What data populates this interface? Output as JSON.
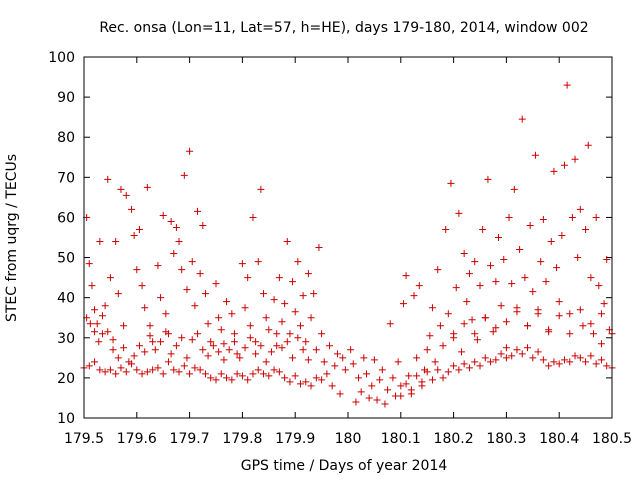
{
  "chart_data": {
    "type": "scatter",
    "title": "Rec. onsa (Lon=11, Lat=57, h=HE), days 179-180, 2014, window 002",
    "xlabel": "GPS time / Days of year 2014",
    "ylabel": "STEC from uqrg / TECUs",
    "xlim": [
      179.5,
      180.5
    ],
    "ylim": [
      10,
      100
    ],
    "xticks": [
      "179.5",
      "179.6",
      "179.7",
      "179.8",
      "179.9",
      "180",
      "180.1",
      "180.2",
      "180.3",
      "180.4",
      "180.5"
    ],
    "yticks": [
      "10",
      "20",
      "30",
      "40",
      "50",
      "60",
      "70",
      "80",
      "90",
      "100"
    ],
    "grid": false,
    "legend": "none",
    "marker": "plus",
    "color": "#cc0000",
    "points": [
      [
        179.505,
        60.0
      ],
      [
        179.51,
        48.5
      ],
      [
        179.515,
        43.0
      ],
      [
        179.52,
        37.0
      ],
      [
        179.525,
        33.5
      ],
      [
        179.53,
        54.0
      ],
      [
        179.535,
        31.0
      ],
      [
        179.54,
        38.0
      ],
      [
        179.545,
        69.5
      ],
      [
        179.55,
        45.0
      ],
      [
        179.555,
        27.0
      ],
      [
        179.56,
        54.0
      ],
      [
        179.565,
        41.0
      ],
      [
        179.57,
        67.0
      ],
      [
        179.575,
        33.0
      ],
      [
        179.58,
        65.5
      ],
      [
        179.59,
        62.0
      ],
      [
        179.595,
        55.5
      ],
      [
        179.6,
        47.0
      ],
      [
        179.605,
        57.0
      ],
      [
        179.61,
        43.0
      ],
      [
        179.615,
        37.5
      ],
      [
        179.62,
        67.5
      ],
      [
        179.625,
        33.0
      ],
      [
        179.63,
        29.0
      ],
      [
        179.64,
        48.0
      ],
      [
        179.645,
        40.0
      ],
      [
        179.65,
        60.5
      ],
      [
        179.655,
        36.0
      ],
      [
        179.66,
        31.0
      ],
      [
        179.665,
        59.0
      ],
      [
        179.67,
        51.0
      ],
      [
        179.675,
        57.5
      ],
      [
        179.68,
        54.0
      ],
      [
        179.685,
        47.0
      ],
      [
        179.69,
        70.5
      ],
      [
        179.695,
        42.0
      ],
      [
        179.7,
        76.5
      ],
      [
        179.705,
        49.0
      ],
      [
        179.71,
        38.0
      ],
      [
        179.715,
        61.5
      ],
      [
        179.72,
        46.0
      ],
      [
        179.725,
        58.0
      ],
      [
        179.73,
        41.0
      ],
      [
        179.735,
        33.5
      ],
      [
        179.74,
        29.0
      ],
      [
        179.75,
        43.5
      ],
      [
        179.755,
        35.0
      ],
      [
        179.76,
        32.0
      ],
      [
        179.765,
        28.5
      ],
      [
        179.77,
        39.0
      ],
      [
        179.78,
        36.0
      ],
      [
        179.785,
        31.0
      ],
      [
        179.79,
        26.0
      ],
      [
        179.8,
        48.5
      ],
      [
        179.805,
        37.5
      ],
      [
        179.81,
        45.0
      ],
      [
        179.815,
        33.0
      ],
      [
        179.82,
        60.0
      ],
      [
        179.825,
        29.0
      ],
      [
        179.83,
        49.0
      ],
      [
        179.835,
        67.0
      ],
      [
        179.84,
        41.0
      ],
      [
        179.845,
        35.0
      ],
      [
        179.85,
        32.0
      ],
      [
        179.86,
        39.5
      ],
      [
        179.865,
        28.0
      ],
      [
        179.87,
        45.0
      ],
      [
        179.875,
        34.0
      ],
      [
        179.88,
        38.5
      ],
      [
        179.885,
        54.0
      ],
      [
        179.89,
        31.0
      ],
      [
        179.895,
        44.0
      ],
      [
        179.9,
        36.5
      ],
      [
        179.905,
        49.0
      ],
      [
        179.91,
        33.0
      ],
      [
        179.915,
        40.5
      ],
      [
        179.92,
        29.0
      ],
      [
        179.925,
        46.0
      ],
      [
        179.93,
        35.0
      ],
      [
        179.935,
        41.0
      ],
      [
        179.94,
        27.0
      ],
      [
        179.945,
        52.5
      ],
      [
        179.95,
        31.0
      ],
      [
        179.955,
        24.0
      ],
      [
        179.96,
        21.0
      ],
      [
        179.965,
        28.0
      ],
      [
        179.97,
        18.0
      ],
      [
        179.975,
        23.0
      ],
      [
        179.98,
        26.0
      ],
      [
        179.985,
        16.0
      ],
      [
        179.99,
        25.0
      ],
      [
        179.995,
        22.0
      ],
      [
        179.505,
        35.0
      ],
      [
        179.512,
        33.5
      ],
      [
        179.52,
        31.5
      ],
      [
        179.528,
        29.0
      ],
      [
        179.535,
        35.5
      ],
      [
        179.545,
        31.5
      ],
      [
        179.555,
        29.5
      ],
      [
        179.565,
        25.0
      ],
      [
        179.575,
        27.5
      ],
      [
        179.585,
        24.0
      ],
      [
        179.595,
        25.5
      ],
      [
        179.605,
        28.0
      ],
      [
        179.615,
        26.5
      ],
      [
        179.625,
        30.5
      ],
      [
        179.635,
        27.0
      ],
      [
        179.645,
        29.0
      ],
      [
        179.655,
        31.5
      ],
      [
        179.665,
        26.0
      ],
      [
        179.675,
        28.0
      ],
      [
        179.685,
        30.0
      ],
      [
        179.695,
        25.0
      ],
      [
        179.705,
        29.5
      ],
      [
        179.715,
        31.0
      ],
      [
        179.725,
        27.0
      ],
      [
        179.735,
        25.5
      ],
      [
        179.745,
        28.0
      ],
      [
        179.755,
        26.5
      ],
      [
        179.765,
        24.5
      ],
      [
        179.775,
        27.0
      ],
      [
        179.785,
        29.0
      ],
      [
        179.795,
        25.0
      ],
      [
        179.805,
        27.5
      ],
      [
        179.815,
        30.0
      ],
      [
        179.825,
        26.0
      ],
      [
        179.835,
        28.0
      ],
      [
        179.845,
        24.0
      ],
      [
        179.855,
        26.5
      ],
      [
        179.865,
        31.0
      ],
      [
        179.875,
        27.5
      ],
      [
        179.885,
        29.0
      ],
      [
        179.895,
        25.0
      ],
      [
        179.905,
        30.0
      ],
      [
        179.915,
        27.0
      ],
      [
        179.925,
        24.5
      ],
      [
        179.5,
        22.5
      ],
      [
        179.51,
        23.0
      ],
      [
        179.52,
        24.0
      ],
      [
        179.53,
        22.0
      ],
      [
        179.54,
        21.5
      ],
      [
        179.55,
        22.0
      ],
      [
        179.56,
        21.0
      ],
      [
        179.57,
        22.5
      ],
      [
        179.58,
        21.5
      ],
      [
        179.59,
        23.5
      ],
      [
        179.6,
        22.0
      ],
      [
        179.61,
        21.0
      ],
      [
        179.62,
        21.5
      ],
      [
        179.63,
        22.0
      ],
      [
        179.64,
        22.5
      ],
      [
        179.65,
        21.0
      ],
      [
        179.66,
        24.0
      ],
      [
        179.67,
        22.0
      ],
      [
        179.68,
        21.5
      ],
      [
        179.69,
        23.0
      ],
      [
        179.7,
        21.0
      ],
      [
        179.71,
        22.5
      ],
      [
        179.72,
        22.0
      ],
      [
        179.73,
        21.0
      ],
      [
        179.74,
        20.0
      ],
      [
        179.75,
        19.5
      ],
      [
        179.76,
        21.0
      ],
      [
        179.77,
        20.0
      ],
      [
        179.78,
        19.5
      ],
      [
        179.79,
        21.0
      ],
      [
        179.8,
        20.5
      ],
      [
        179.81,
        19.5
      ],
      [
        179.82,
        21.0
      ],
      [
        179.83,
        22.0
      ],
      [
        179.84,
        21.0
      ],
      [
        179.85,
        20.5
      ],
      [
        179.86,
        22.0
      ],
      [
        179.87,
        21.5
      ],
      [
        179.88,
        20.0
      ],
      [
        179.89,
        19.0
      ],
      [
        179.9,
        20.5
      ],
      [
        179.91,
        18.5
      ],
      [
        179.92,
        19.0
      ],
      [
        179.93,
        18.0
      ],
      [
        179.94,
        20.0
      ],
      [
        179.95,
        19.5
      ],
      [
        180.005,
        27.0
      ],
      [
        180.01,
        23.5
      ],
      [
        180.015,
        14.0
      ],
      [
        180.02,
        20.0
      ],
      [
        180.025,
        16.5
      ],
      [
        180.03,
        25.0
      ],
      [
        180.035,
        21.0
      ],
      [
        180.04,
        15.0
      ],
      [
        180.045,
        18.0
      ],
      [
        180.05,
        24.5
      ],
      [
        180.055,
        14.5
      ],
      [
        180.06,
        19.5
      ],
      [
        180.065,
        22.0
      ],
      [
        180.07,
        13.5
      ],
      [
        180.075,
        17.0
      ],
      [
        180.08,
        33.5
      ],
      [
        180.085,
        20.0
      ],
      [
        180.09,
        15.5
      ],
      [
        180.095,
        24.0
      ],
      [
        180.1,
        18.0
      ],
      [
        180.105,
        38.5
      ],
      [
        180.11,
        45.5
      ],
      [
        180.115,
        20.5
      ],
      [
        180.12,
        16.0
      ],
      [
        180.125,
        40.5
      ],
      [
        180.13,
        25.0
      ],
      [
        180.135,
        43.0
      ],
      [
        180.14,
        19.0
      ],
      [
        180.145,
        22.0
      ],
      [
        180.15,
        27.0
      ],
      [
        180.155,
        30.5
      ],
      [
        180.16,
        37.5
      ],
      [
        180.165,
        24.0
      ],
      [
        180.17,
        47.0
      ],
      [
        180.175,
        33.0
      ],
      [
        180.18,
        28.0
      ],
      [
        180.185,
        57.0
      ],
      [
        180.19,
        36.0
      ],
      [
        180.195,
        68.5
      ],
      [
        180.2,
        31.0
      ],
      [
        180.205,
        42.5
      ],
      [
        180.21,
        61.0
      ],
      [
        180.215,
        26.5
      ],
      [
        180.22,
        51.0
      ],
      [
        180.225,
        39.0
      ],
      [
        180.23,
        46.0
      ],
      [
        180.235,
        34.5
      ],
      [
        180.24,
        49.0
      ],
      [
        180.245,
        29.5
      ],
      [
        180.25,
        43.0
      ],
      [
        180.255,
        57.0
      ],
      [
        180.26,
        35.0
      ],
      [
        180.265,
        69.5
      ],
      [
        180.27,
        48.0
      ],
      [
        180.275,
        31.5
      ],
      [
        180.28,
        44.0
      ],
      [
        180.285,
        55.0
      ],
      [
        180.29,
        38.0
      ],
      [
        180.295,
        49.5
      ],
      [
        180.3,
        27.5
      ],
      [
        180.305,
        60.0
      ],
      [
        180.31,
        43.5
      ],
      [
        180.315,
        67.0
      ],
      [
        180.32,
        36.5
      ],
      [
        180.325,
        52.0
      ],
      [
        180.33,
        84.5
      ],
      [
        180.335,
        45.0
      ],
      [
        180.34,
        33.0
      ],
      [
        180.345,
        58.0
      ],
      [
        180.35,
        41.5
      ],
      [
        180.355,
        75.5
      ],
      [
        180.36,
        37.0
      ],
      [
        180.365,
        49.0
      ],
      [
        180.37,
        59.5
      ],
      [
        180.375,
        44.0
      ],
      [
        180.38,
        31.5
      ],
      [
        180.385,
        54.0
      ],
      [
        180.39,
        71.5
      ],
      [
        180.395,
        47.5
      ],
      [
        180.4,
        39.0
      ],
      [
        180.405,
        55.5
      ],
      [
        180.41,
        73.0
      ],
      [
        180.415,
        93.0
      ],
      [
        180.42,
        36.0
      ],
      [
        180.425,
        60.0
      ],
      [
        180.43,
        74.5
      ],
      [
        180.435,
        50.0
      ],
      [
        180.44,
        62.0
      ],
      [
        180.445,
        33.0
      ],
      [
        180.45,
        57.0
      ],
      [
        180.455,
        78.0
      ],
      [
        180.46,
        45.0
      ],
      [
        180.465,
        31.0
      ],
      [
        180.47,
        60.0
      ],
      [
        180.475,
        43.0
      ],
      [
        180.48,
        28.5
      ],
      [
        180.485,
        38.5
      ],
      [
        180.49,
        49.5
      ],
      [
        180.495,
        32.0
      ],
      [
        180.1,
        15.5
      ],
      [
        180.11,
        18.5
      ],
      [
        180.12,
        17.0
      ],
      [
        180.13,
        20.5
      ],
      [
        180.14,
        18.0
      ],
      [
        180.15,
        21.5
      ],
      [
        180.16,
        19.5
      ],
      [
        180.17,
        22.0
      ],
      [
        180.18,
        20.0
      ],
      [
        180.19,
        21.5
      ],
      [
        180.2,
        23.0
      ],
      [
        180.21,
        22.0
      ],
      [
        180.22,
        23.5
      ],
      [
        180.23,
        22.5
      ],
      [
        180.24,
        24.0
      ],
      [
        180.25,
        23.0
      ],
      [
        180.26,
        25.0
      ],
      [
        180.27,
        24.0
      ],
      [
        180.28,
        24.5
      ],
      [
        180.29,
        26.0
      ],
      [
        180.3,
        25.0
      ],
      [
        180.31,
        25.5
      ],
      [
        180.32,
        27.0
      ],
      [
        180.33,
        26.0
      ],
      [
        180.34,
        27.5
      ],
      [
        180.35,
        25.0
      ],
      [
        180.36,
        26.5
      ],
      [
        180.37,
        24.5
      ],
      [
        180.38,
        23.0
      ],
      [
        180.39,
        24.0
      ],
      [
        180.4,
        23.5
      ],
      [
        180.41,
        24.5
      ],
      [
        180.42,
        24.0
      ],
      [
        180.43,
        25.5
      ],
      [
        180.44,
        25.0
      ],
      [
        180.45,
        24.0
      ],
      [
        180.46,
        25.5
      ],
      [
        180.47,
        23.5
      ],
      [
        180.48,
        24.5
      ],
      [
        180.49,
        23.0
      ],
      [
        180.5,
        22.5
      ],
      [
        180.2,
        30.0
      ],
      [
        180.22,
        33.5
      ],
      [
        180.24,
        31.0
      ],
      [
        180.26,
        35.0
      ],
      [
        180.28,
        32.5
      ],
      [
        180.3,
        34.0
      ],
      [
        180.32,
        37.5
      ],
      [
        180.34,
        33.0
      ],
      [
        180.36,
        36.0
      ],
      [
        180.38,
        32.0
      ],
      [
        180.4,
        35.5
      ],
      [
        180.42,
        31.0
      ],
      [
        180.44,
        37.0
      ],
      [
        180.46,
        33.5
      ],
      [
        180.48,
        36.0
      ],
      [
        180.5,
        31.0
      ]
    ]
  }
}
